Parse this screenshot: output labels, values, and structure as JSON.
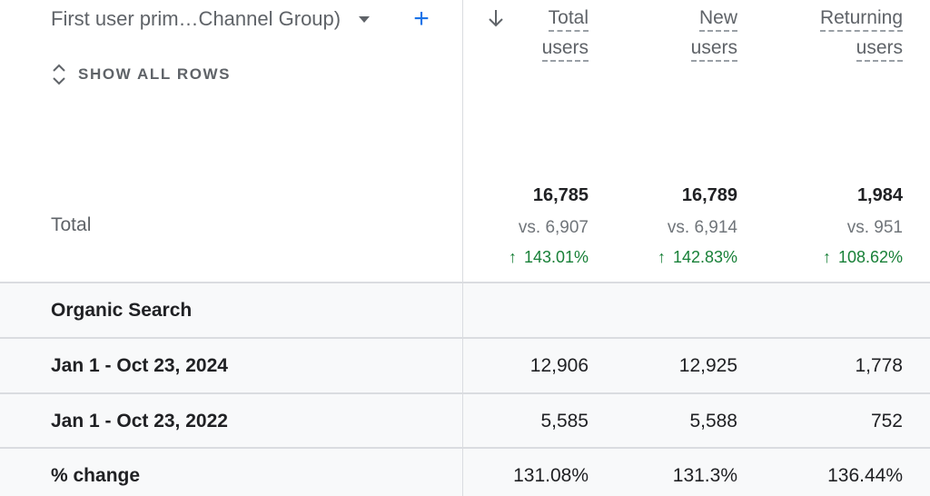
{
  "dimension": {
    "label": "First user prim…Channel Group)"
  },
  "show_all_rows": "SHOW ALL ROWS",
  "columns": [
    {
      "line1": "Total",
      "line2": "users"
    },
    {
      "line1": "New",
      "line2": "users"
    },
    {
      "line1": "Returning",
      "line2": "users"
    }
  ],
  "totals": {
    "label": "Total",
    "values": [
      "16,785",
      "16,789",
      "1,984"
    ],
    "compare": [
      "vs. 6,907",
      "vs. 6,914",
      "vs. 951"
    ],
    "changes": [
      "143.01%",
      "142.83%",
      "108.62%"
    ]
  },
  "group": {
    "label": "Organic Search"
  },
  "rows": [
    {
      "label": "Jan 1 - Oct 23, 2024",
      "values": [
        "12,906",
        "12,925",
        "1,778"
      ]
    },
    {
      "label": "Jan 1 - Oct 23, 2022",
      "values": [
        "5,585",
        "5,588",
        "752"
      ]
    },
    {
      "label": "% change",
      "values": [
        "131.08%",
        "131.3%",
        "136.44%"
      ]
    }
  ],
  "colors": {
    "accent": "#1a73e8",
    "positive": "#188038",
    "row_bg": "#f8f9fa"
  }
}
